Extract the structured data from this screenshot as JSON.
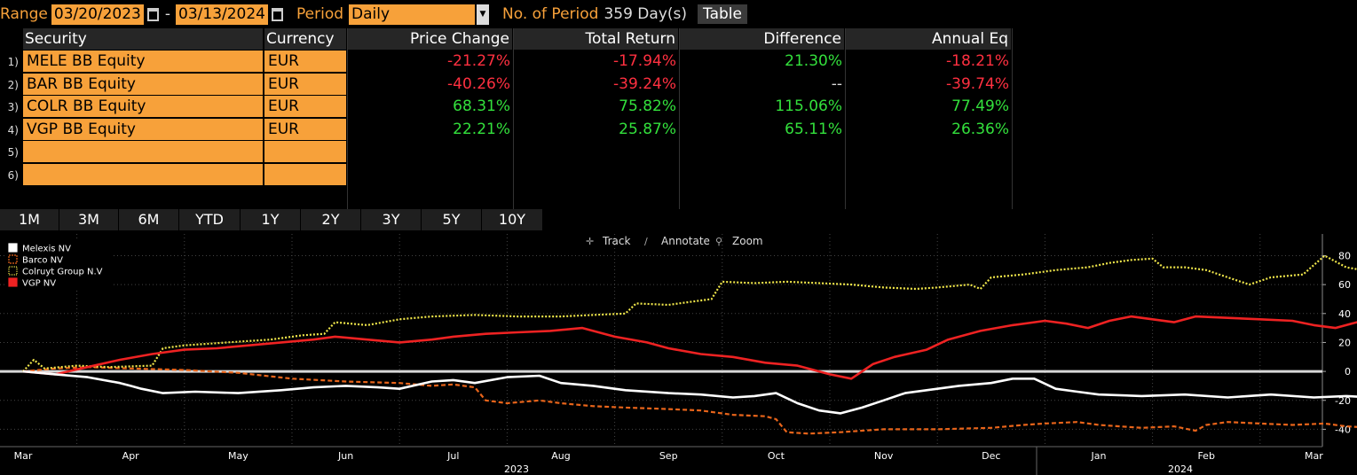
{
  "controls": {
    "range_label": "Range",
    "start_date": "03/20/2023",
    "end_date": "03/13/2024",
    "period_label": "Period",
    "period_value": "Daily",
    "num_periods_label": "No. of Period",
    "num_periods_value": "359 Day(s)",
    "table_button": "Table"
  },
  "table": {
    "headers": [
      "Security",
      "Currency",
      "Price Change",
      "Total Return",
      "Difference",
      "Annual Eq"
    ],
    "rows": [
      {
        "num": "1)",
        "security": "MELE BB Equity",
        "currency": "EUR",
        "price_change": "-21.27%",
        "total_return": "-17.94%",
        "difference": "21.30%",
        "annual_eq": "-18.21%"
      },
      {
        "num": "2)",
        "security": "BAR BB Equity",
        "currency": "EUR",
        "price_change": "-40.26%",
        "total_return": "-39.24%",
        "difference": "--",
        "annual_eq": "-39.74%"
      },
      {
        "num": "3)",
        "security": "COLR BB Equity",
        "currency": "EUR",
        "price_change": "68.31%",
        "total_return": "75.82%",
        "difference": "115.06%",
        "annual_eq": "77.49%"
      },
      {
        "num": "4)",
        "security": "VGP BB Equity",
        "currency": "EUR",
        "price_change": "22.21%",
        "total_return": "25.87%",
        "difference": "65.11%",
        "annual_eq": "26.36%"
      },
      {
        "num": "5)",
        "security": "",
        "currency": "",
        "price_change": "",
        "total_return": "",
        "difference": "",
        "annual_eq": ""
      },
      {
        "num": "6)",
        "security": "",
        "currency": "",
        "price_change": "",
        "total_return": "",
        "difference": "",
        "annual_eq": ""
      }
    ]
  },
  "period_tabs": [
    "1M",
    "3M",
    "6M",
    "YTD",
    "1Y",
    "2Y",
    "3Y",
    "5Y",
    "10Y"
  ],
  "chart_tools": [
    "Track",
    "Annotate",
    "Zoom"
  ],
  "colors": {
    "accent": "#f7a13a",
    "positive": "#33e03c",
    "negative": "#ff3040",
    "melexis": "#ffffff",
    "barco": "#e8641a",
    "colruyt": "#f0e64a",
    "vgp": "#ee2222"
  },
  "chart_data": {
    "type": "line",
    "title": "",
    "ylim": [
      -52,
      95
    ],
    "yticks": [
      80,
      60,
      40,
      20,
      0,
      -20,
      -40
    ],
    "x_months": [
      "Mar",
      "Apr",
      "May",
      "Jun",
      "Jul",
      "Aug",
      "Sep",
      "Oct",
      "Nov",
      "Dec",
      "Jan",
      "Feb",
      "Mar"
    ],
    "x_years": [
      "2023",
      "2024"
    ],
    "legend_position": "top-left",
    "series": [
      {
        "name": "Melexis NV",
        "style": "solid-white",
        "points": [
          [
            0,
            0
          ],
          [
            0.3,
            -2
          ],
          [
            0.6,
            -4
          ],
          [
            0.9,
            -8
          ],
          [
            1.0,
            -10
          ],
          [
            1.1,
            -12
          ],
          [
            1.3,
            -15
          ],
          [
            1.6,
            -14
          ],
          [
            2.0,
            -15
          ],
          [
            2.4,
            -13
          ],
          [
            2.7,
            -11
          ],
          [
            3.0,
            -10
          ],
          [
            3.3,
            -11
          ],
          [
            3.5,
            -12
          ],
          [
            3.8,
            -7
          ],
          [
            4.0,
            -6
          ],
          [
            4.2,
            -8
          ],
          [
            4.5,
            -4
          ],
          [
            4.8,
            -3
          ],
          [
            5.0,
            -8
          ],
          [
            5.3,
            -10
          ],
          [
            5.6,
            -13
          ],
          [
            6.0,
            -15
          ],
          [
            6.3,
            -16
          ],
          [
            6.6,
            -18
          ],
          [
            6.8,
            -17
          ],
          [
            7.0,
            -15
          ],
          [
            7.2,
            -22
          ],
          [
            7.4,
            -27
          ],
          [
            7.6,
            -29
          ],
          [
            7.8,
            -25
          ],
          [
            8.0,
            -20
          ],
          [
            8.2,
            -15
          ],
          [
            8.4,
            -13
          ],
          [
            8.7,
            -10
          ],
          [
            9.0,
            -8
          ],
          [
            9.2,
            -5
          ],
          [
            9.4,
            -5
          ],
          [
            9.6,
            -12
          ],
          [
            9.8,
            -14
          ],
          [
            10.0,
            -16
          ],
          [
            10.4,
            -17
          ],
          [
            10.8,
            -16
          ],
          [
            11.2,
            -18
          ],
          [
            11.6,
            -16
          ],
          [
            12.0,
            -18
          ],
          [
            12.3,
            -17
          ],
          [
            12.55,
            -18
          ]
        ]
      },
      {
        "name": "Barco NV",
        "style": "dashed-orange",
        "points": [
          [
            0,
            0
          ],
          [
            0.3,
            2
          ],
          [
            0.6,
            3
          ],
          [
            1.0,
            2
          ],
          [
            1.5,
            1
          ],
          [
            2.0,
            -1
          ],
          [
            2.5,
            -5
          ],
          [
            3.0,
            -7
          ],
          [
            3.5,
            -8
          ],
          [
            3.8,
            -10
          ],
          [
            4.0,
            -9
          ],
          [
            4.2,
            -11
          ],
          [
            4.3,
            -20
          ],
          [
            4.5,
            -22
          ],
          [
            4.8,
            -20
          ],
          [
            5.0,
            -22
          ],
          [
            5.3,
            -24
          ],
          [
            5.6,
            -25
          ],
          [
            6.0,
            -26
          ],
          [
            6.3,
            -27
          ],
          [
            6.6,
            -30
          ],
          [
            6.9,
            -31
          ],
          [
            7.0,
            -33
          ],
          [
            7.1,
            -42
          ],
          [
            7.3,
            -43
          ],
          [
            7.6,
            -42
          ],
          [
            7.8,
            -41
          ],
          [
            8.0,
            -40
          ],
          [
            8.5,
            -40
          ],
          [
            9.0,
            -39
          ],
          [
            9.3,
            -37
          ],
          [
            9.5,
            -36
          ],
          [
            9.8,
            -35
          ],
          [
            10.0,
            -37
          ],
          [
            10.4,
            -39
          ],
          [
            10.7,
            -38
          ],
          [
            10.9,
            -41
          ],
          [
            11.0,
            -37
          ],
          [
            11.2,
            -35
          ],
          [
            11.5,
            -36
          ],
          [
            11.8,
            -37
          ],
          [
            12.1,
            -36
          ],
          [
            12.3,
            -38
          ],
          [
            12.55,
            -39
          ]
        ]
      },
      {
        "name": "Colruyt Group N.V",
        "style": "dotted-yellow",
        "points": [
          [
            0,
            0
          ],
          [
            0.1,
            8
          ],
          [
            0.2,
            2
          ],
          [
            0.5,
            4
          ],
          [
            0.8,
            3
          ],
          [
            1.2,
            4
          ],
          [
            1.3,
            16
          ],
          [
            1.5,
            18
          ],
          [
            1.9,
            20
          ],
          [
            2.3,
            22
          ],
          [
            2.6,
            25
          ],
          [
            2.8,
            26
          ],
          [
            2.9,
            34
          ],
          [
            3.2,
            32
          ],
          [
            3.5,
            36
          ],
          [
            3.8,
            38
          ],
          [
            4.2,
            39
          ],
          [
            4.6,
            38
          ],
          [
            5.0,
            38
          ],
          [
            5.3,
            39
          ],
          [
            5.6,
            40
          ],
          [
            5.7,
            47
          ],
          [
            6.0,
            46
          ],
          [
            6.2,
            48
          ],
          [
            6.4,
            50
          ],
          [
            6.5,
            62
          ],
          [
            6.8,
            61
          ],
          [
            7.1,
            62
          ],
          [
            7.4,
            61
          ],
          [
            7.7,
            60
          ],
          [
            8.0,
            58
          ],
          [
            8.3,
            57
          ],
          [
            8.5,
            58
          ],
          [
            8.8,
            60
          ],
          [
            8.9,
            57
          ],
          [
            9.0,
            65
          ],
          [
            9.3,
            67
          ],
          [
            9.6,
            70
          ],
          [
            9.9,
            72
          ],
          [
            10.1,
            75
          ],
          [
            10.3,
            77
          ],
          [
            10.5,
            78
          ],
          [
            10.6,
            72
          ],
          [
            10.8,
            72
          ],
          [
            11.0,
            70
          ],
          [
            11.2,
            65
          ],
          [
            11.4,
            60
          ],
          [
            11.6,
            65
          ],
          [
            11.9,
            67
          ],
          [
            12.1,
            80
          ],
          [
            12.3,
            72
          ],
          [
            12.45,
            70
          ],
          [
            12.55,
            76
          ]
        ]
      },
      {
        "name": "VGP NV",
        "style": "solid-red",
        "points": [
          [
            0,
            0
          ],
          [
            0.3,
            -2
          ],
          [
            0.6,
            3
          ],
          [
            0.9,
            8
          ],
          [
            1.2,
            12
          ],
          [
            1.5,
            15
          ],
          [
            1.8,
            16
          ],
          [
            2.1,
            18
          ],
          [
            2.4,
            20
          ],
          [
            2.7,
            22
          ],
          [
            2.9,
            24
          ],
          [
            3.2,
            22
          ],
          [
            3.5,
            20
          ],
          [
            3.8,
            22
          ],
          [
            4.0,
            24
          ],
          [
            4.3,
            26
          ],
          [
            4.6,
            27
          ],
          [
            4.9,
            28
          ],
          [
            5.2,
            30
          ],
          [
            5.5,
            24
          ],
          [
            5.8,
            20
          ],
          [
            6.0,
            16
          ],
          [
            6.3,
            12
          ],
          [
            6.6,
            10
          ],
          [
            6.9,
            6
          ],
          [
            7.2,
            4
          ],
          [
            7.5,
            -2
          ],
          [
            7.7,
            -5
          ],
          [
            7.9,
            5
          ],
          [
            8.1,
            10
          ],
          [
            8.4,
            15
          ],
          [
            8.6,
            22
          ],
          [
            8.9,
            28
          ],
          [
            9.2,
            32
          ],
          [
            9.5,
            35
          ],
          [
            9.7,
            33
          ],
          [
            9.9,
            30
          ],
          [
            10.1,
            35
          ],
          [
            10.3,
            38
          ],
          [
            10.5,
            36
          ],
          [
            10.7,
            34
          ],
          [
            10.9,
            38
          ],
          [
            11.2,
            37
          ],
          [
            11.5,
            36
          ],
          [
            11.8,
            35
          ],
          [
            12.0,
            32
          ],
          [
            12.2,
            30
          ],
          [
            12.4,
            34
          ],
          [
            12.55,
            26
          ]
        ]
      }
    ]
  }
}
